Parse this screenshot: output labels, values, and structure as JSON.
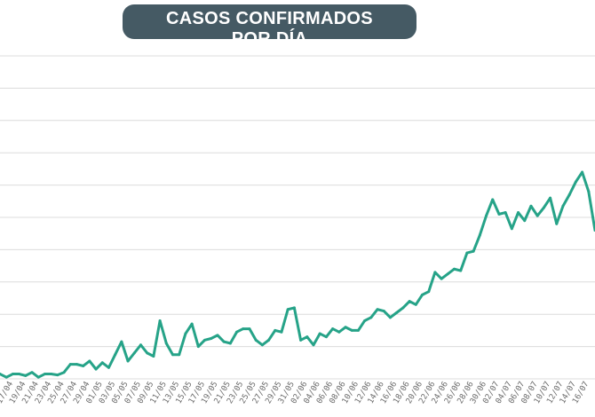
{
  "title": {
    "line1": "CASOS CONFIRMADOS",
    "line2": "POR DÍA"
  },
  "colors": {
    "line": "#26a388",
    "grid": "#dcdcdc",
    "title_bg": "#455a64",
    "title_text": "#ffffff",
    "tick_text": "#6b6b6b"
  },
  "chart_data": {
    "type": "line",
    "title": "CASOS CONFIRMADOS POR DÍA",
    "xlabel": "",
    "ylabel": "",
    "grid": true,
    "y_axis_labels_visible": false,
    "ylim": [
      0,
      100
    ],
    "x": [
      "15/04",
      "16/04",
      "17/04",
      "18/04",
      "19/04",
      "20/04",
      "21/04",
      "22/04",
      "23/04",
      "24/04",
      "25/04",
      "26/04",
      "27/04",
      "28/04",
      "29/04",
      "30/04",
      "01/05",
      "02/05",
      "03/05",
      "04/05",
      "05/05",
      "06/05",
      "07/05",
      "08/05",
      "09/05",
      "10/05",
      "11/05",
      "12/05",
      "13/05",
      "14/05",
      "15/05",
      "16/05",
      "17/05",
      "18/05",
      "19/05",
      "20/05",
      "21/05",
      "22/05",
      "23/05",
      "24/05",
      "25/05",
      "26/05",
      "27/05",
      "28/05",
      "29/05",
      "30/05",
      "31/05",
      "01/06",
      "02/06",
      "03/06",
      "04/06",
      "05/06",
      "06/06",
      "07/06",
      "08/06",
      "09/06",
      "10/06",
      "11/06",
      "12/06",
      "13/06",
      "14/06",
      "15/06",
      "16/06",
      "17/06",
      "18/06",
      "19/06",
      "20/06",
      "21/06",
      "22/06",
      "23/06",
      "24/06",
      "25/06",
      "26/06",
      "27/06",
      "28/06",
      "29/06",
      "30/06",
      "01/07",
      "02/07",
      "03/07",
      "04/07",
      "05/07",
      "06/07",
      "07/07",
      "08/07",
      "09/07",
      "10/07",
      "11/07",
      "12/07",
      "13/07",
      "14/07",
      "15/07",
      "16/07",
      "17/07"
    ],
    "tick_labels": [
      "15/04",
      "17/04",
      "19/04",
      "21/04",
      "23/04",
      "25/04",
      "27/04",
      "29/04",
      "01/05",
      "03/05",
      "05/05",
      "07/05",
      "09/05",
      "11/05",
      "13/05",
      "15/05",
      "17/05",
      "19/05",
      "21/05",
      "23/05",
      "25/05",
      "27/05",
      "29/05",
      "31/05",
      "02/06",
      "04/06",
      "06/06",
      "08/06",
      "10/06",
      "12/06",
      "14/06",
      "16/06",
      "18/06",
      "20/06",
      "22/06",
      "24/06",
      "26/06",
      "28/06",
      "30/06",
      "02/07",
      "04/07",
      "06/07",
      "08/07",
      "10/07",
      "12/07",
      "14/07",
      "16/07"
    ],
    "series": [
      {
        "values": [
          1.5,
          0.5,
          1.5,
          1.5,
          1,
          2,
          0.5,
          1.5,
          1.5,
          1.2,
          2,
          4.5,
          4.5,
          4,
          5.5,
          3,
          5,
          3.5,
          7.5,
          11.5,
          5.5,
          8,
          10.5,
          8,
          7,
          18,
          11,
          7.5,
          7.5,
          14,
          17,
          10,
          12,
          12.5,
          13.5,
          11.5,
          11,
          14.5,
          15.5,
          15.5,
          12,
          10.5,
          12,
          15,
          14.5,
          21.5,
          22,
          12,
          13,
          10.5,
          14,
          13,
          15.5,
          14.5,
          16,
          15,
          15,
          18,
          19,
          21.5,
          21,
          19,
          20.5,
          22,
          24,
          23,
          26,
          27,
          33,
          31,
          32.5,
          34,
          33.5,
          39,
          39.5,
          44.5,
          50.5,
          55.5,
          51,
          51.5,
          46.5,
          51.5,
          49,
          53.5,
          50.5,
          53,
          56,
          48,
          53.5,
          57,
          61,
          64,
          58,
          46
        ]
      }
    ]
  }
}
